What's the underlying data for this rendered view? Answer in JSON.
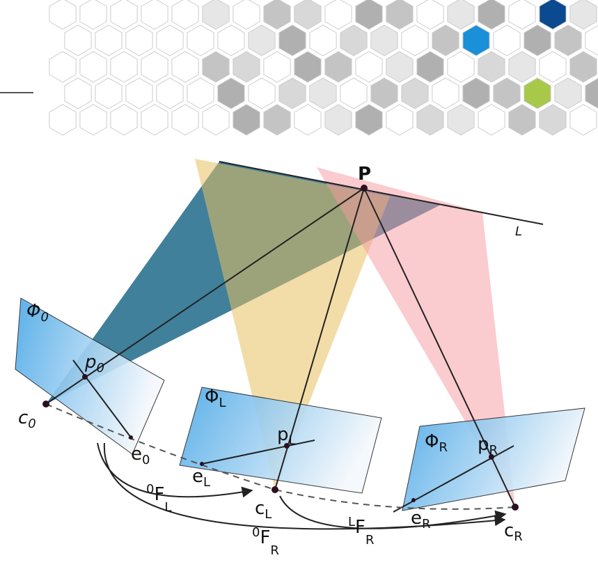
{
  "diagram": {
    "point_P": "P",
    "line_L": "L",
    "phi0": {
      "main": "Φ",
      "sub": "0"
    },
    "p0": {
      "main": "p",
      "sub": "0"
    },
    "c0": {
      "main": "c",
      "sub": "0"
    },
    "e0": {
      "main": "e",
      "sub": "0"
    },
    "phiL": {
      "main": "Φ",
      "sub": "L"
    },
    "pL": {
      "main": "p",
      "sub": "L"
    },
    "cL": {
      "main": "c",
      "sub": "L"
    },
    "eL": {
      "main": "e",
      "sub": "L"
    },
    "phiR": {
      "main": "Φ",
      "sub": "R"
    },
    "pR": {
      "main": "p",
      "sub": "R"
    },
    "cR": {
      "main": "c",
      "sub": "R"
    },
    "eR": {
      "main": "e",
      "sub": "R"
    },
    "F0L": {
      "sup": "0",
      "main": "F",
      "sub": "L"
    },
    "FLR": {
      "sup": "L",
      "main": "F",
      "sub": "R"
    },
    "F0R": {
      "sup": "0",
      "main": "F",
      "sub": "R"
    }
  }
}
